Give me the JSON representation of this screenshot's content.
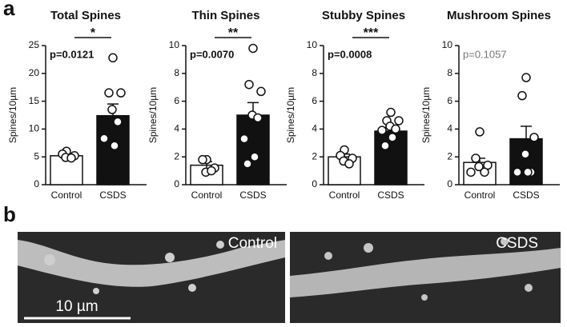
{
  "panel_labels": [
    "a",
    "b"
  ],
  "chart_data": [
    {
      "type": "bar",
      "title": "Total Spines",
      "ylabel": "Spines/10µm",
      "categories": [
        "Control",
        "CSDS"
      ],
      "values": [
        5.2,
        12.4
      ],
      "errors": [
        0.4,
        2.1
      ],
      "points": [
        [
          6.0,
          5.5,
          5.2,
          4.9,
          4.8
        ],
        [
          22.8,
          16.5,
          16.5,
          13.5,
          11.3,
          8.3,
          7.0
        ]
      ],
      "colors": [
        "#ffffff",
        "#111111"
      ],
      "significance": "*",
      "annotation": "p=0.0121",
      "annotation_bold": true,
      "ylim": [
        0,
        25
      ],
      "yticks": [
        0,
        5,
        10,
        15,
        20,
        25
      ]
    },
    {
      "type": "bar",
      "title": "Thin Spines",
      "ylabel": "Spines/10µm",
      "categories": [
        "Control",
        "CSDS"
      ],
      "values": [
        1.4,
        5.0
      ],
      "errors": [
        0.25,
        0.9
      ],
      "points": [
        [
          1.8,
          1.8,
          1.2,
          0.9,
          1.0
        ],
        [
          9.8,
          7.2,
          6.7,
          5.0,
          4.8,
          3.3,
          2.0,
          1.5
        ]
      ],
      "colors": [
        "#ffffff",
        "#111111"
      ],
      "significance": "**",
      "annotation": "p=0.0070",
      "annotation_bold": true,
      "ylim": [
        0,
        10
      ],
      "yticks": [
        0,
        2,
        4,
        6,
        8,
        10
      ]
    },
    {
      "type": "bar",
      "title": "Stubby Spines",
      "ylabel": "Spines/10µm",
      "categories": [
        "Control",
        "CSDS"
      ],
      "values": [
        2.0,
        3.85
      ],
      "errors": [
        0.2,
        0.3
      ],
      "points": [
        [
          2.5,
          2.1,
          1.9,
          1.7,
          1.5
        ],
        [
          5.2,
          4.6,
          4.6,
          4.2,
          4.0,
          3.9,
          3.4,
          2.8
        ]
      ],
      "colors": [
        "#ffffff",
        "#111111"
      ],
      "significance": "***",
      "annotation": "p=0.0008",
      "annotation_bold": true,
      "ylim": [
        0,
        10
      ],
      "yticks": [
        0,
        2,
        4,
        6,
        8,
        10
      ]
    },
    {
      "type": "bar",
      "title": "Mushroom Spines",
      "ylabel": "Spines/10µm",
      "categories": [
        "Control",
        "CSDS"
      ],
      "values": [
        1.6,
        3.3
      ],
      "errors": [
        0.3,
        0.9
      ],
      "points": [
        [
          3.8,
          1.9,
          1.4,
          1.3,
          0.9,
          0.9
        ],
        [
          7.7,
          6.4,
          3.4,
          2.2,
          0.9,
          0.9,
          0.9
        ]
      ],
      "colors": [
        "#ffffff",
        "#111111"
      ],
      "annotation": "p=0.1057",
      "annotation_bold": false,
      "ylim": [
        0,
        10
      ],
      "yticks": [
        0,
        2,
        4,
        6,
        8,
        10
      ]
    }
  ],
  "images": {
    "labels": [
      "Control",
      "CSDS"
    ],
    "scale_bar": "10 µm"
  }
}
